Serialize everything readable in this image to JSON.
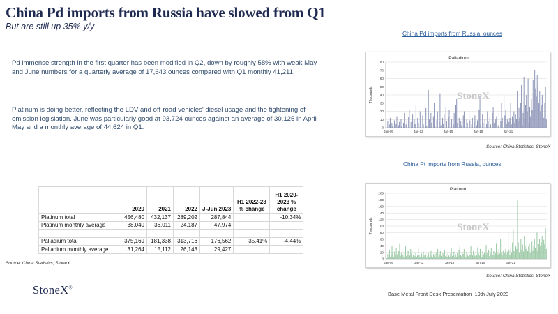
{
  "header": {
    "title": "China Pd imports from Russia have slowed from Q1",
    "subtitle": "But are still up 35% y/y"
  },
  "paragraphs": {
    "p1": "Pd immense strength in the first quarter has been modified in Q2, down by roughly 58% with weak May and June numbers for a quarterly average of 17,643 ounces  compared with Q1 monthly 41,211.",
    "p2": "Platinum is doing better, reflecting the LDV and off-road vehicles' diesel usage and the tightening of emission legislation.  June was particularly good at 93,724 ounces against an average of 30,125 in April-May and a monthly average of 44,624 in Q1."
  },
  "table": {
    "headers": [
      "",
      "2020",
      "2021",
      "2022",
      "J-Jun 2023",
      "H1 2022-23 % change",
      "H1 2020-2023  % change"
    ],
    "rows": [
      [
        "Platinum total",
        "456,480",
        "432,137",
        "289,202",
        "287,844",
        "",
        "-10.34%"
      ],
      [
        "Platinum monthly average",
        "38,040",
        "36,011",
        "24,187",
        "47,974",
        "",
        ""
      ],
      [
        "",
        "",
        "",
        "",
        "",
        "",
        ""
      ],
      [
        "Palladium total",
        "375,169",
        "181,338",
        "313,716",
        "176,562",
        "35.41%",
        "-4.44%"
      ],
      [
        "Palladium monthly average",
        "31,264",
        "15,112",
        "26,143",
        "29,427",
        "",
        ""
      ]
    ],
    "source": "Source: China Statistics, StoneX"
  },
  "chart_titles": {
    "pd": "China Pd imports from Russia, ounces",
    "pt": "China Pt imports from Russia, ounces"
  },
  "sources": {
    "pd": "Source: China Statistics, StoneX",
    "pt": "Source: China Statistics, StoneX"
  },
  "watermark": "StoneX",
  "logo": {
    "text": "StoneX",
    "mark": "®"
  },
  "footer": "Base Metal Front Desk Presentation  |19th July 2023",
  "colors": {
    "palladium": "#8e96b8",
    "platinum": "#9cc9a6",
    "title": "#1f2a50",
    "link": "#2b5d9c"
  },
  "chart_data": [
    {
      "type": "bar",
      "title": "Palladium",
      "ylabel": "Thousands",
      "ylim": [
        0,
        80
      ],
      "yticks": [
        0,
        10,
        20,
        30,
        40,
        50,
        60,
        70,
        80
      ],
      "xticks": [
        "Jan-09",
        "Jan-12",
        "Jan-15",
        "Jan-18",
        "Jan-21"
      ],
      "x_start": "Jan-09",
      "values": [
        3,
        0,
        8,
        0,
        4,
        12,
        0,
        6,
        2,
        0,
        9,
        0,
        5,
        14,
        0,
        3,
        7,
        0,
        11,
        2,
        0,
        6,
        18,
        0,
        4,
        9,
        0,
        13,
        22,
        0,
        7,
        3,
        16,
        0,
        10,
        5,
        28,
        0,
        12,
        6,
        0,
        20,
        9,
        0,
        15,
        4,
        0,
        8,
        24,
        2,
        0,
        46,
        10,
        0,
        18,
        6,
        0,
        14,
        30,
        2,
        0,
        9,
        20,
        0,
        7,
        42,
        3,
        0,
        12,
        5,
        16,
        0,
        25,
        8,
        0,
        14,
        22,
        0,
        6,
        10,
        0,
        4,
        18,
        0,
        28,
        35,
        6,
        0,
        12,
        0,
        8,
        3,
        0,
        15,
        20,
        2,
        0,
        10,
        6,
        0,
        18,
        9,
        0,
        4,
        12,
        0,
        7,
        15,
        0,
        3,
        9,
        0,
        22,
        38,
        4,
        0,
        16,
        6,
        0,
        11,
        0,
        5,
        20,
        8,
        0,
        13,
        4,
        0,
        18,
        25,
        6,
        0,
        10,
        14,
        0,
        3,
        22,
        0,
        8,
        30,
        12,
        0,
        40,
        15,
        22,
        5,
        10,
        18,
        7,
        12,
        30,
        4,
        14,
        9,
        20,
        6,
        16,
        11,
        45,
        8,
        24,
        12,
        30,
        52,
        3,
        18,
        62,
        10,
        28,
        40,
        20,
        60,
        6,
        25,
        14,
        35,
        22,
        58,
        40,
        70,
        48,
        38,
        64,
        52,
        30,
        45,
        20,
        28,
        40,
        16,
        12,
        30,
        50,
        10
      ],
      "series_name": "Palladium"
    },
    {
      "type": "bar",
      "title": "Platinum",
      "ylabel": "Thousands",
      "ylim": [
        0,
        200
      ],
      "yticks": [
        0,
        20,
        40,
        60,
        80,
        100,
        120,
        140,
        160,
        180,
        200
      ],
      "xticks": [
        "Jan-09",
        "Jan-12",
        "Jan-15",
        "Jan-18",
        "Jan-21"
      ],
      "x_start": "Jan-09",
      "values": [
        8,
        2,
        15,
        4,
        28,
        6,
        12,
        40,
        18,
        5,
        22,
        10,
        32,
        14,
        6,
        25,
        48,
        9,
        18,
        30,
        12,
        4,
        20,
        38,
        8,
        14,
        26,
        6,
        10,
        30,
        16,
        4,
        12,
        22,
        8,
        18,
        6,
        10,
        35,
        12,
        5,
        8,
        16,
        4,
        22,
        10,
        6,
        14,
        3,
        9,
        18,
        5,
        12,
        26,
        8,
        4,
        15,
        10,
        6,
        20,
        12,
        30,
        7,
        14,
        24,
        9,
        5,
        18,
        11,
        28,
        8,
        15,
        6,
        20,
        10,
        4,
        16,
        32,
        9,
        12,
        22,
        7,
        14,
        6,
        18,
        10,
        28,
        40,
        12,
        8,
        20,
        15,
        30,
        10,
        6,
        22,
        14,
        8,
        18,
        12,
        38,
        20,
        10,
        26,
        15,
        8,
        22,
        12,
        35,
        18,
        10,
        30,
        16,
        6,
        24,
        14,
        20,
        10,
        42,
        18,
        12,
        28,
        8,
        16,
        32,
        20,
        12,
        24,
        10,
        18,
        48,
        22,
        14,
        30,
        16,
        60,
        20,
        12,
        26,
        40,
        18,
        30,
        14,
        22,
        80,
        28,
        12,
        36,
        20,
        50,
        90,
        24,
        14,
        40,
        30,
        178,
        50,
        20,
        36,
        60,
        28,
        44,
        22,
        70,
        40,
        30,
        56,
        24,
        38,
        48,
        20,
        30,
        52,
        26,
        40,
        60,
        34,
        28,
        80,
        22,
        45,
        60,
        38,
        50,
        70,
        36,
        58,
        44,
        94,
        30
      ]
    }
  ]
}
